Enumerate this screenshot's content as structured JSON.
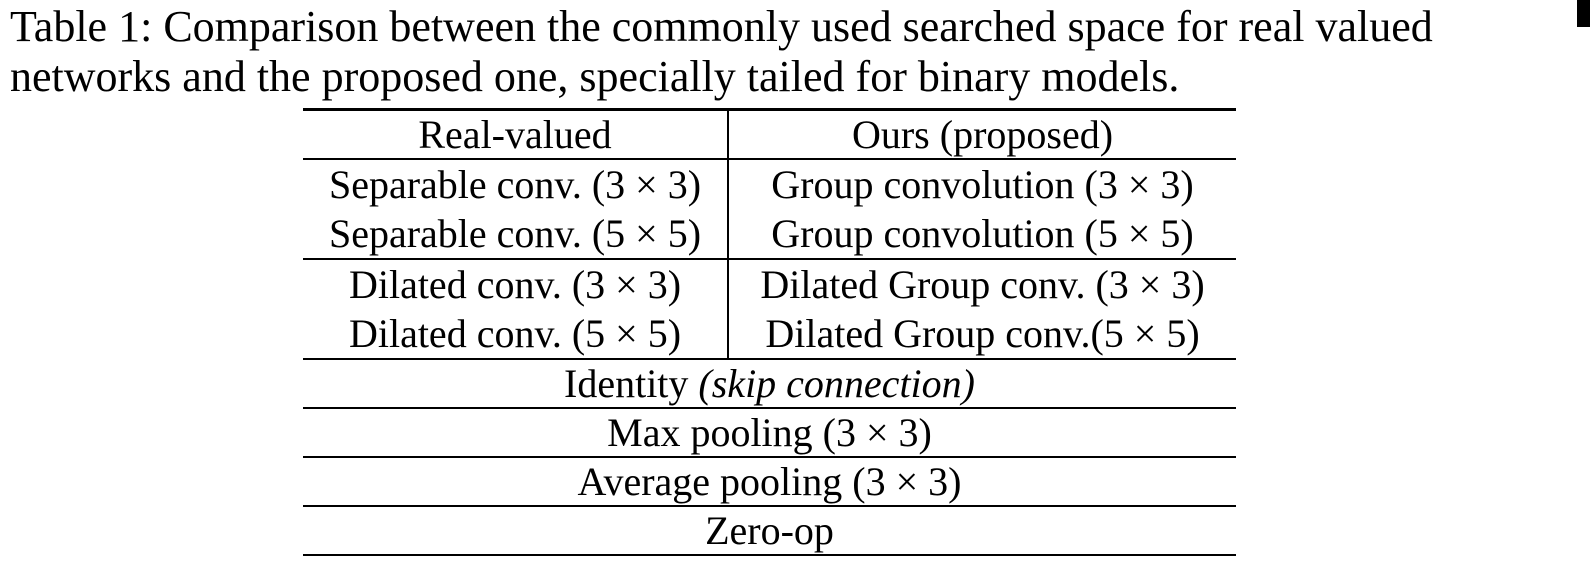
{
  "colors": {
    "background": "#ffffff",
    "text": "#000000",
    "rule": "#000000",
    "overfull_marker": "#000000"
  },
  "caption": {
    "line1": "Table 1: Comparison between the commonly used searched space for real valued",
    "line2": "networks and the proposed one, specially tailed for binary models."
  },
  "table": {
    "header": {
      "left": "Real-valued",
      "right": "Ours (proposed)"
    },
    "rows": [
      {
        "left": "Separable conv. (3 × 3)",
        "right": "Group convolution (3 × 3)"
      },
      {
        "left": "Separable conv. (5 × 5)",
        "right": "Group convolution (5 × 5)"
      },
      {
        "left": "Dilated conv. (3 × 3)",
        "right": "Dilated Group conv. (3 × 3)"
      },
      {
        "left": "Dilated conv. (5 × 5)",
        "right": "Dilated Group conv.(5 × 5)"
      }
    ],
    "span_rows": [
      {
        "text": "Identity ",
        "italic": "(skip connection)"
      },
      {
        "text": "Max pooling (3 × 3)",
        "italic": ""
      },
      {
        "text": "Average pooling (3 × 3)",
        "italic": ""
      },
      {
        "text": "Zero-op",
        "italic": ""
      }
    ]
  }
}
